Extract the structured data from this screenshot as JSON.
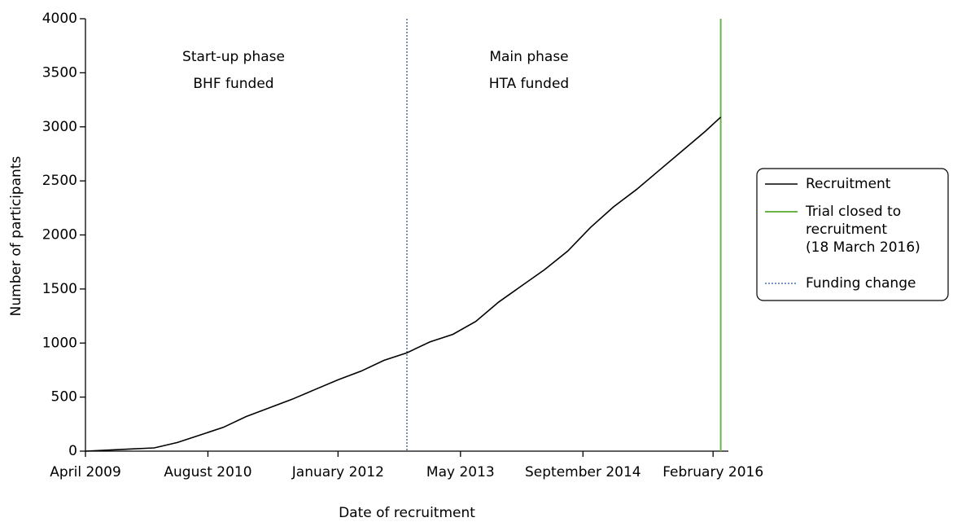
{
  "chart_data": {
    "type": "line",
    "x_label": "Date of recruitment",
    "y_label": "Number of participants",
    "annotations": [
      "Start-up phase",
      "BHF funded",
      "Main phase",
      "HTA funded"
    ],
    "x": [
      "2009-04",
      "2009-07",
      "2009-10",
      "2010-01",
      "2010-04",
      "2010-07",
      "2010-10",
      "2011-01",
      "2011-04",
      "2011-07",
      "2011-10",
      "2012-01",
      "2012-04",
      "2012-07",
      "2012-10",
      "2013-01",
      "2013-04",
      "2013-07",
      "2013-10",
      "2014-01",
      "2014-04",
      "2014-07",
      "2014-10",
      "2015-01",
      "2015-04",
      "2015-07",
      "2015-10",
      "2016-01",
      "2016-03"
    ],
    "series": [
      {
        "name": "Recruitment",
        "color": "#000000",
        "values": [
          0,
          10,
          20,
          30,
          80,
          150,
          220,
          320,
          400,
          480,
          570,
          660,
          740,
          840,
          910,
          1010,
          1080,
          1200,
          1380,
          1530,
          1680,
          1850,
          2070,
          2260,
          2420,
          2600,
          2780,
          2960,
          3090
        ]
      }
    ],
    "vlines": [
      {
        "name": [
          "Trial closed to",
          "recruitment",
          "(18 March 2016)"
        ],
        "x": "2016-03",
        "color": "#6ab547",
        "dashed": false
      },
      {
        "name": [
          "Funding change"
        ],
        "x": "2012-10",
        "color": "#4a6fa5",
        "dashed": true
      }
    ],
    "xlim": [
      "2009-04",
      "2016-04"
    ],
    "xticks": [
      {
        "value": "2009-04",
        "label": "April 2009"
      },
      {
        "value": "2010-08",
        "label": "August 2010"
      },
      {
        "value": "2012-01",
        "label": "January 2012"
      },
      {
        "value": "2013-05",
        "label": "May 2013"
      },
      {
        "value": "2014-09",
        "label": "September 2014"
      },
      {
        "value": "2016-02",
        "label": "February 2016"
      }
    ],
    "ylim": [
      0,
      4000
    ],
    "yticks": [
      0,
      500,
      1000,
      1500,
      2000,
      2500,
      3000,
      3500,
      4000
    ],
    "legend": "right"
  }
}
